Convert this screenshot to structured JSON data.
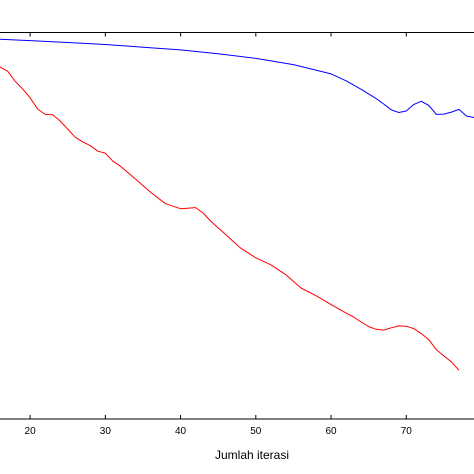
{
  "chart_data": {
    "type": "line",
    "title": "",
    "xlabel": "Jumlah iterasi",
    "ylabel": "",
    "xlim": [
      15.6,
      79
    ],
    "ylim": [
      0,
      1
    ],
    "grid": false,
    "x_ticks": [
      20,
      30,
      40,
      50,
      60,
      70
    ],
    "series": [
      {
        "color": "#0000ff",
        "x": [
          15.6,
          20,
          25,
          30,
          35,
          40,
          45,
          50,
          55,
          60,
          62,
          64,
          66,
          67,
          68,
          69,
          70,
          71,
          72,
          73,
          74,
          75,
          76,
          77,
          78,
          79
        ],
        "y": [
          0.983,
          0.979,
          0.974,
          0.969,
          0.962,
          0.955,
          0.945,
          0.933,
          0.917,
          0.893,
          0.875,
          0.853,
          0.829,
          0.815,
          0.8,
          0.793,
          0.797,
          0.814,
          0.822,
          0.811,
          0.788,
          0.789,
          0.794,
          0.801,
          0.784,
          0.78
        ]
      },
      {
        "color": "#ff0000",
        "x": [
          15.6,
          17,
          18,
          19,
          20,
          21,
          22,
          23,
          24,
          25,
          26,
          27,
          28,
          29,
          30,
          31,
          32,
          34,
          36,
          38,
          40,
          42,
          43,
          44,
          46,
          48,
          50,
          52,
          54,
          56,
          58,
          60,
          62,
          63,
          64,
          65,
          66,
          67,
          68,
          69,
          70,
          71,
          72,
          73,
          74,
          75,
          76,
          77
        ],
        "y": [
          0.915,
          0.9,
          0.874,
          0.854,
          0.831,
          0.802,
          0.788,
          0.787,
          0.771,
          0.75,
          0.729,
          0.717,
          0.707,
          0.693,
          0.688,
          0.667,
          0.654,
          0.621,
          0.587,
          0.557,
          0.544,
          0.547,
          0.533,
          0.512,
          0.477,
          0.442,
          0.417,
          0.399,
          0.373,
          0.339,
          0.319,
          0.296,
          0.274,
          0.264,
          0.251,
          0.239,
          0.232,
          0.23,
          0.236,
          0.241,
          0.24,
          0.234,
          0.221,
          0.205,
          0.179,
          0.163,
          0.148,
          0.126
        ]
      }
    ]
  }
}
